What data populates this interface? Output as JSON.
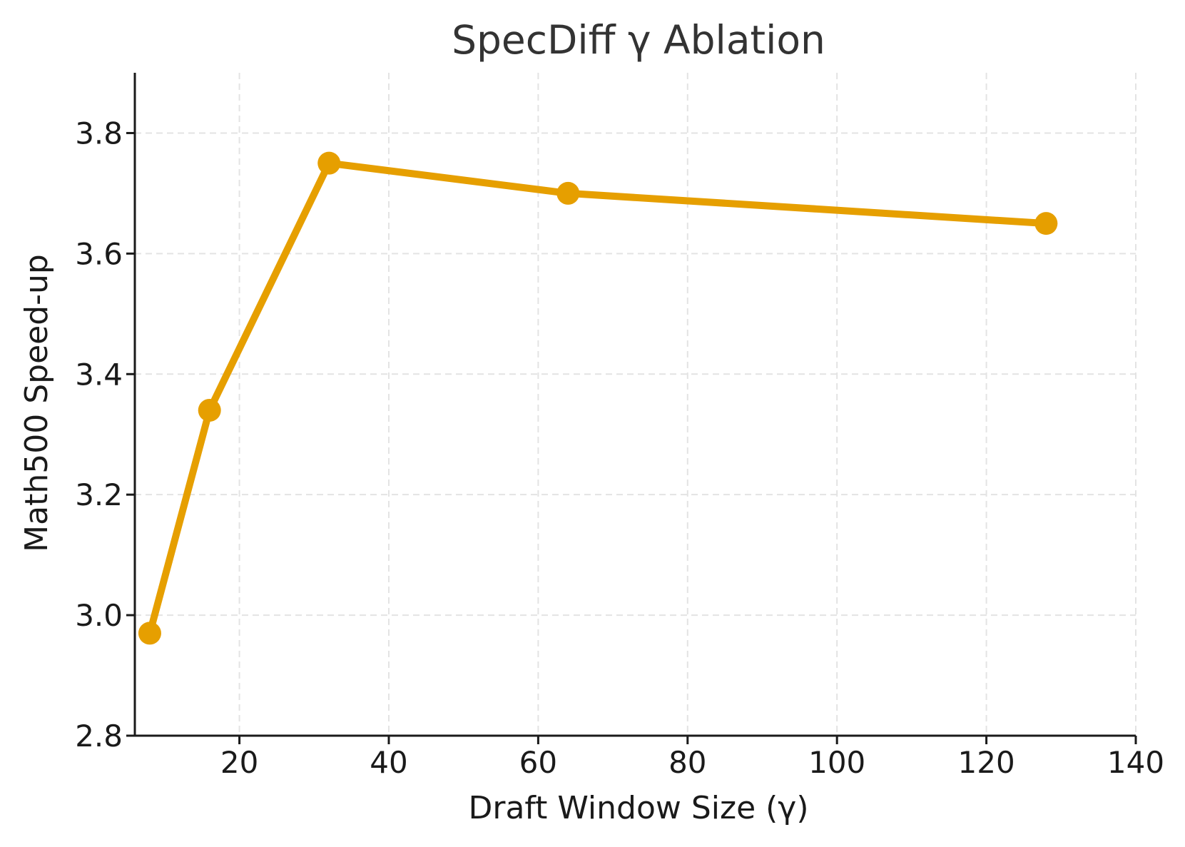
{
  "chart_data": {
    "type": "line",
    "title": "SpecDiff γ Ablation",
    "xlabel": "Draft Window Size (γ)",
    "ylabel": "Math500 Speed-up",
    "xlim": [
      6,
      140
    ],
    "ylim": [
      2.8,
      3.9
    ],
    "xticks": [
      20,
      40,
      60,
      80,
      100,
      120,
      140
    ],
    "xtick_labels": [
      "20",
      "40",
      "60",
      "80",
      "100",
      "120",
      "140"
    ],
    "yticks": [
      2.8,
      3.0,
      3.2,
      3.4,
      3.6,
      3.8
    ],
    "ytick_labels": [
      "2.8",
      "3.0",
      "3.2",
      "3.4",
      "3.6",
      "3.8"
    ],
    "grid": true,
    "series": [
      {
        "color": "#E69F00",
        "x": [
          8,
          16,
          32,
          64,
          128
        ],
        "y": [
          2.97,
          3.34,
          3.75,
          3.7,
          3.65
        ]
      }
    ]
  }
}
